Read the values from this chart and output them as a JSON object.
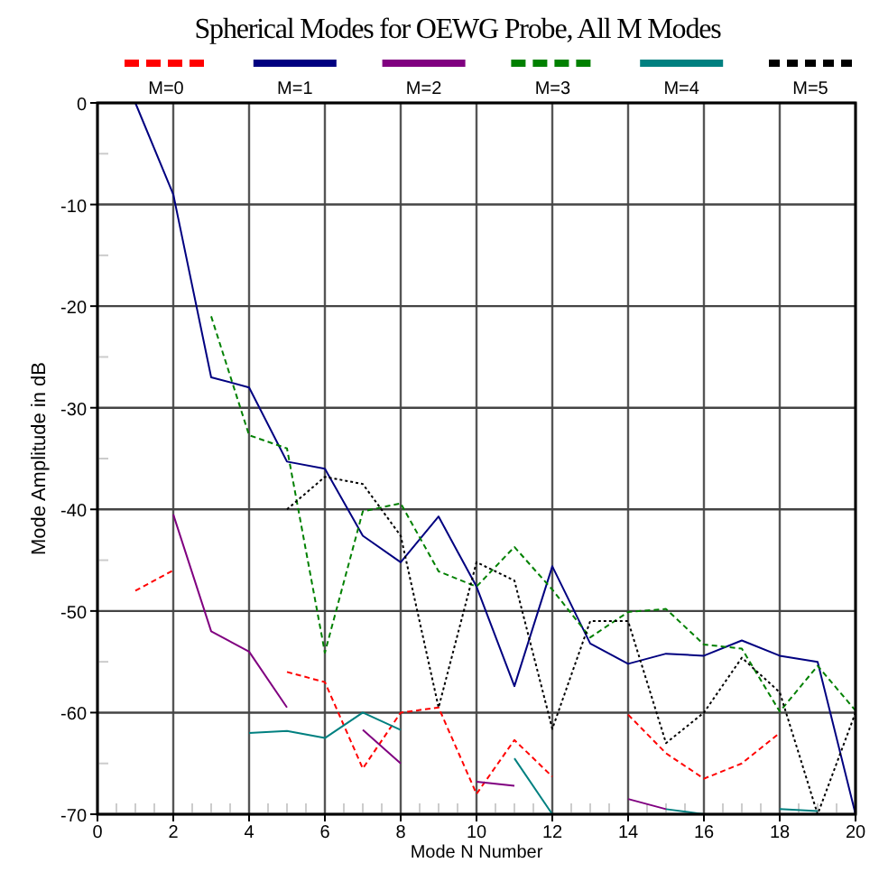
{
  "chart_data": {
    "type": "line",
    "title": "Spherical Modes for OEWG Probe, All M Modes",
    "xlabel": "Mode N Number",
    "ylabel": "Mode Amplitude in dB",
    "x": [
      1,
      2,
      3,
      4,
      5,
      6,
      7,
      8,
      9,
      10,
      11,
      12,
      13,
      14,
      15,
      16,
      17,
      18,
      19,
      20
    ],
    "series": [
      {
        "name": "M=0",
        "color": "#ff0000",
        "line_style": "dashed",
        "values": [
          -48,
          -46,
          null,
          null,
          -56,
          -57,
          -65.5,
          -60,
          -59.5,
          -68,
          -62.7,
          -66.3,
          null,
          -60.2,
          -64,
          -66.5,
          -65,
          -62,
          null,
          null
        ]
      },
      {
        "name": "M=1",
        "color": "#000080",
        "line_style": "solid",
        "values": [
          0,
          -9,
          -27,
          -28,
          -35.3,
          -36,
          -42.6,
          -45.2,
          -40.7,
          -47.6,
          -57.4,
          -45.6,
          -53.2,
          -55.2,
          -54.2,
          -54.4,
          -52.9,
          -54.4,
          -55,
          -70
        ]
      },
      {
        "name": "M=2",
        "color": "#800080",
        "line_style": "solid",
        "values": [
          null,
          -40.5,
          -52,
          -54,
          -59.5,
          null,
          -61.7,
          -65,
          null,
          -66.8,
          -67.2,
          null,
          null,
          -68.5,
          -69.5,
          null,
          null,
          null,
          null,
          null
        ]
      },
      {
        "name": "M=3",
        "color": "#008000",
        "line_style": "dashed",
        "values": [
          null,
          null,
          -21,
          -32.7,
          -34,
          -54.1,
          -40.2,
          -39.4,
          -46.1,
          -47.6,
          -43.7,
          -47.9,
          -52.6,
          -50.1,
          -49.8,
          -53.3,
          -53.7,
          -59.9,
          -55.4,
          -59.8
        ]
      },
      {
        "name": "M=4",
        "color": "#008080",
        "line_style": "solid",
        "values": [
          null,
          null,
          null,
          -62,
          -61.8,
          -62.5,
          -60,
          -61.7,
          null,
          null,
          -64.5,
          -70,
          null,
          null,
          -69.5,
          -70,
          null,
          -69.5,
          -69.7,
          null
        ]
      },
      {
        "name": "M=5",
        "color": "#000000",
        "line_style": "dotted",
        "values": [
          null,
          null,
          null,
          null,
          -40,
          -36.8,
          -37.5,
          -42.6,
          -59.5,
          -45.2,
          -47,
          -61.6,
          -51,
          -51,
          -63,
          -60,
          -54.6,
          -58,
          -70,
          -60
        ]
      }
    ],
    "xlim": [
      0,
      20
    ],
    "xticks": [
      0,
      2,
      4,
      6,
      8,
      10,
      12,
      14,
      16,
      18,
      20
    ],
    "ylim": [
      -70,
      0
    ],
    "yticks": [
      0,
      -10,
      -20,
      -30,
      -40,
      -50,
      -60,
      -70
    ],
    "grid": true,
    "legend": "top"
  }
}
